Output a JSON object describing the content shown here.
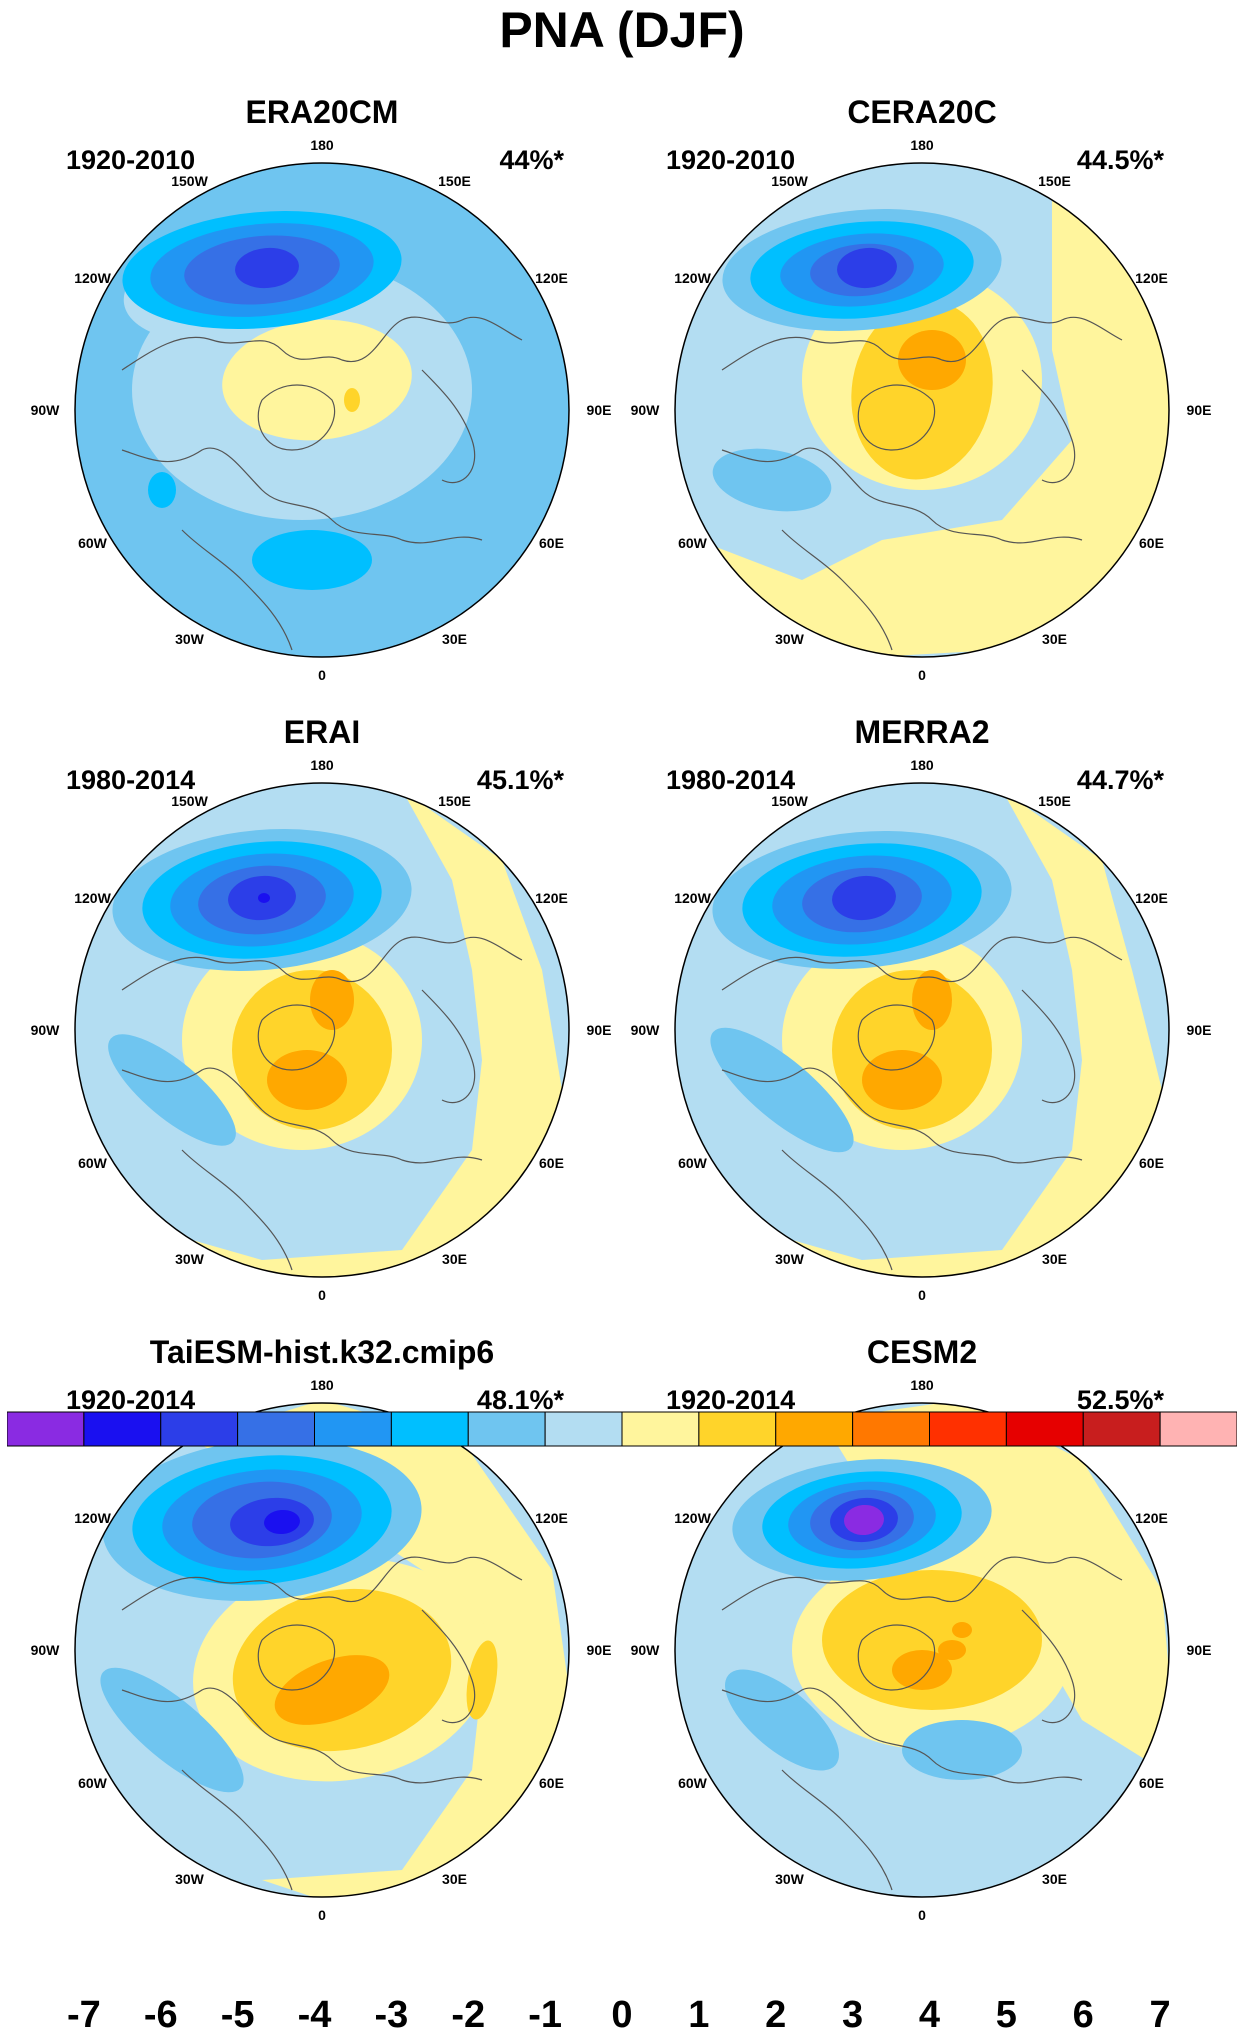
{
  "title": "PNA (DJF)",
  "panels": [
    {
      "name": "ERA20CM",
      "period": "1920-2010",
      "variance": "44%*"
    },
    {
      "name": "CERA20C",
      "period": "1920-2010",
      "variance": "44.5%*"
    },
    {
      "name": "ERAI",
      "period": "1980-2014",
      "variance": "45.1%*"
    },
    {
      "name": "MERRA2",
      "period": "1980-2014",
      "variance": "44.7%*"
    },
    {
      "name": "TaiESM-hist.k32.cmip6",
      "period": "1920-2014",
      "variance": "48.1%*"
    },
    {
      "name": "CESM2",
      "period": "1920-2014",
      "variance": "52.5%*"
    }
  ],
  "longitude_labels": [
    "180",
    "150E",
    "120E",
    "90E",
    "60E",
    "30E",
    "0",
    "30W",
    "60W",
    "90W",
    "120W",
    "150W"
  ],
  "colorbar": {
    "labels": [
      "-7",
      "-6",
      "-5",
      "-4",
      "-3",
      "-2",
      "-1",
      "0",
      "1",
      "2",
      "3",
      "4",
      "5",
      "6",
      "7"
    ],
    "colors": [
      "#8a2be2",
      "#1a10f0",
      "#2c3ee8",
      "#3670e6",
      "#2196f3",
      "#00bfff",
      "#6fc5f0",
      "#b3ddf2",
      "#fff59d",
      "#ffd42a",
      "#ffa800",
      "#ff7800",
      "#ff3000",
      "#e60000",
      "#c81e1e",
      "#ffb3b3"
    ]
  }
}
